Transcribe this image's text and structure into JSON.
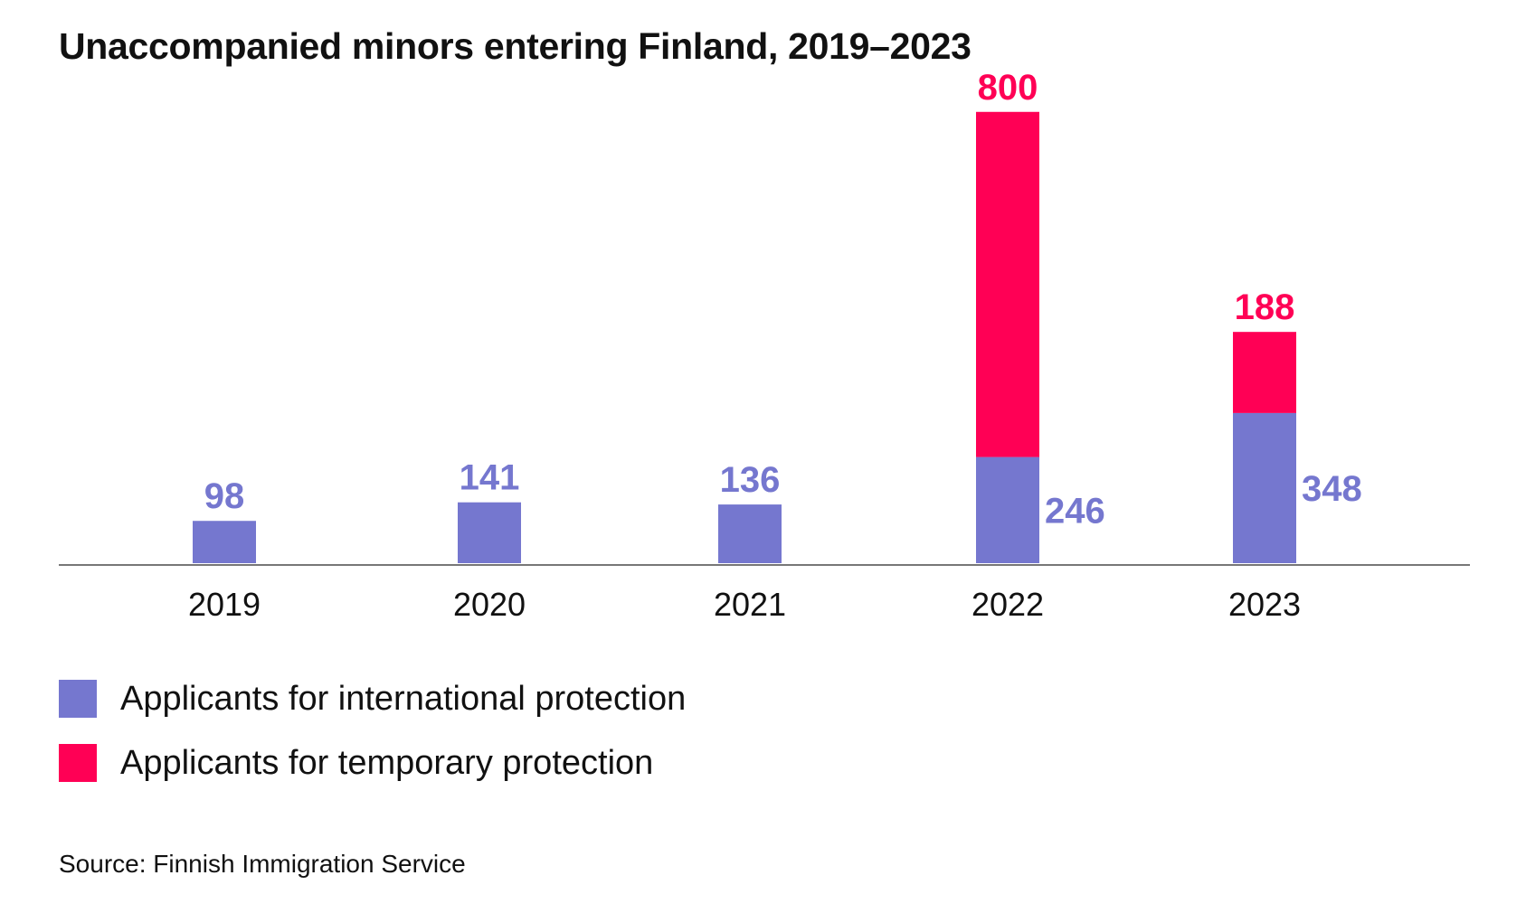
{
  "chart_data": {
    "type": "bar",
    "stacked": true,
    "title": "Unaccompanied minors entering Finland, 2019–2023",
    "categories": [
      "2019",
      "2020",
      "2021",
      "2022",
      "2023"
    ],
    "series": [
      {
        "name": "Applicants for international protection",
        "color": "#7577CF",
        "values": [
          98,
          141,
          136,
          246,
          348
        ]
      },
      {
        "name": "Applicants for temporary protection",
        "color": "#FF0055",
        "values": [
          0,
          0,
          0,
          800,
          188
        ]
      }
    ],
    "ylim": [
      0,
      1100
    ],
    "grid": false,
    "legend": "bottom-left",
    "source": "Source: Finnish Immigration Service"
  }
}
